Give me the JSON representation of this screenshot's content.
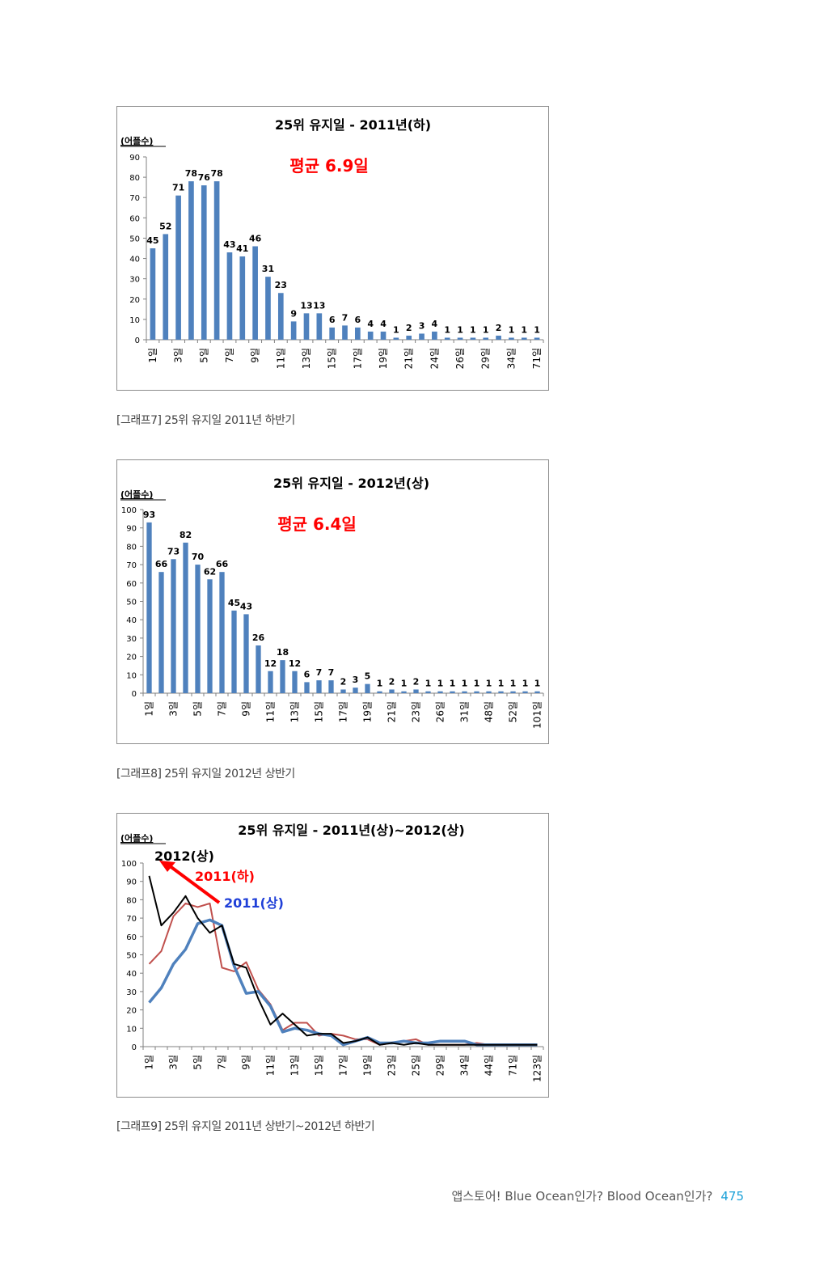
{
  "charts": [
    {
      "id": "g7",
      "type": "bar",
      "title": "25위 유지일 - 2011년(하)",
      "ylabel": "(어플수)",
      "annotation": "평균 6.9일",
      "ylim": [
        0,
        90
      ],
      "yticks": [
        0,
        10,
        20,
        30,
        40,
        50,
        60,
        70,
        80,
        90
      ],
      "color": "#4f81bd",
      "annotation_color": "#ff0000",
      "categories": [
        "1일",
        "2일",
        "3일",
        "4일",
        "5일",
        "6일",
        "7일",
        "8일",
        "9일",
        "10일",
        "11일",
        "12일",
        "13일",
        "14일",
        "15일",
        "16일",
        "17일",
        "18일",
        "19일",
        "20일",
        "21일",
        "22일",
        "24일",
        "25일",
        "26일",
        "27일",
        "29일",
        "30일",
        "34일",
        "36일",
        "71일"
      ],
      "values": [
        45,
        52,
        71,
        78,
        76,
        78,
        43,
        41,
        46,
        31,
        23,
        9,
        13,
        13,
        6,
        7,
        6,
        4,
        4,
        1,
        2,
        3,
        4,
        1,
        1,
        1,
        1,
        2,
        1,
        1,
        1
      ],
      "tick_labels": [
        "1일",
        "3일",
        "5일",
        "7일",
        "9일",
        "11일",
        "13일",
        "15일",
        "17일",
        "19일",
        "21일",
        "24일",
        "26일",
        "29일",
        "34일",
        "71일"
      ],
      "tick_indices": [
        0,
        2,
        4,
        6,
        8,
        10,
        12,
        14,
        16,
        18,
        20,
        22,
        24,
        26,
        28,
        30
      ]
    },
    {
      "id": "g8",
      "type": "bar",
      "title": "25위 유지일 - 2012년(상)",
      "ylabel": "(어플수)",
      "annotation": "평균 6.4일",
      "ylim": [
        0,
        100
      ],
      "yticks": [
        0,
        10,
        20,
        30,
        40,
        50,
        60,
        70,
        80,
        90,
        100
      ],
      "color": "#4f81bd",
      "annotation_color": "#ff0000",
      "categories": [
        "1일",
        "2일",
        "3일",
        "4일",
        "5일",
        "6일",
        "7일",
        "8일",
        "9일",
        "10일",
        "11일",
        "12일",
        "13일",
        "14일",
        "15일",
        "16일",
        "17일",
        "18일",
        "19일",
        "20일",
        "21일",
        "22일",
        "23일",
        "24일",
        "26일",
        "28일",
        "31일",
        "35일",
        "48일",
        "50일",
        "52일",
        "56일",
        "101일"
      ],
      "values": [
        93,
        66,
        73,
        82,
        70,
        62,
        66,
        45,
        43,
        26,
        12,
        18,
        12,
        6,
        7,
        7,
        2,
        3,
        5,
        1,
        2,
        1,
        2,
        1,
        1,
        1,
        1,
        1,
        1,
        1,
        1,
        1,
        1
      ],
      "tick_labels": [
        "1일",
        "3일",
        "5일",
        "7일",
        "9일",
        "11일",
        "13일",
        "15일",
        "17일",
        "19일",
        "21일",
        "23일",
        "26일",
        "31일",
        "48일",
        "52일",
        "101일"
      ],
      "tick_indices": [
        0,
        2,
        4,
        6,
        8,
        10,
        12,
        14,
        16,
        18,
        20,
        22,
        24,
        26,
        28,
        30,
        32
      ]
    },
    {
      "id": "g9",
      "type": "line",
      "title": "25위 유지일 - 2011년(상)~2012(상)",
      "ylabel": "(어플수)",
      "ylim": [
        0,
        100
      ],
      "yticks": [
        0,
        10,
        20,
        30,
        40,
        50,
        60,
        70,
        80,
        90,
        100
      ],
      "tick_labels": [
        "1일",
        "3일",
        "5일",
        "7일",
        "9일",
        "11일",
        "13일",
        "15일",
        "17일",
        "19일",
        "23일",
        "25일",
        "29일",
        "34일",
        "44일",
        "71일",
        "123일"
      ],
      "tick_indices": [
        0,
        2,
        4,
        6,
        8,
        10,
        12,
        14,
        16,
        18,
        20,
        22,
        24,
        26,
        28,
        30,
        32
      ],
      "series": [
        {
          "name": "2011(하)",
          "color": "#c0504d",
          "width": 2,
          "values": [
            45,
            52,
            71,
            78,
            76,
            78,
            43,
            41,
            46,
            31,
            23,
            9,
            13,
            13,
            6,
            7,
            6,
            4,
            4,
            1,
            2,
            3,
            4,
            1,
            1,
            1,
            1,
            2,
            1,
            1,
            1,
            1,
            1
          ]
        },
        {
          "name": "2011(상)",
          "color": "#4f81bd",
          "width": 3.5,
          "values": [
            24,
            32,
            45,
            53,
            67,
            69,
            66,
            44,
            29,
            30,
            22,
            8,
            10,
            9,
            7,
            6,
            1,
            3,
            5,
            2,
            2,
            3,
            2,
            2,
            3,
            3,
            3,
            1,
            1,
            1,
            1,
            1,
            1
          ]
        },
        {
          "name": "2012(상)",
          "color": "#000000",
          "width": 2,
          "values": [
            93,
            66,
            73,
            82,
            70,
            62,
            66,
            45,
            43,
            26,
            12,
            18,
            12,
            6,
            7,
            7,
            2,
            3,
            5,
            1,
            2,
            1,
            2,
            1,
            1,
            1,
            1,
            1,
            1,
            1,
            1,
            1,
            1
          ]
        }
      ],
      "legend_labels": [
        {
          "text": "2012(상)",
          "color": "#000000"
        },
        {
          "text": "2011(하)",
          "color": "#ff0000"
        },
        {
          "text": "2011(상)",
          "color": "#1f3fd8"
        }
      ]
    }
  ],
  "captions": [
    "[그래프7] 25위 유지일 2011년 하반기",
    "[그래프8] 25위 유지일 2012년 상반기",
    "[그래프9] 25위 유지일 2011년 상반기~2012년 하반기"
  ],
  "footer": {
    "text": "앱스토어! Blue Ocean인가? Blood Ocean인가?",
    "page": "475"
  }
}
